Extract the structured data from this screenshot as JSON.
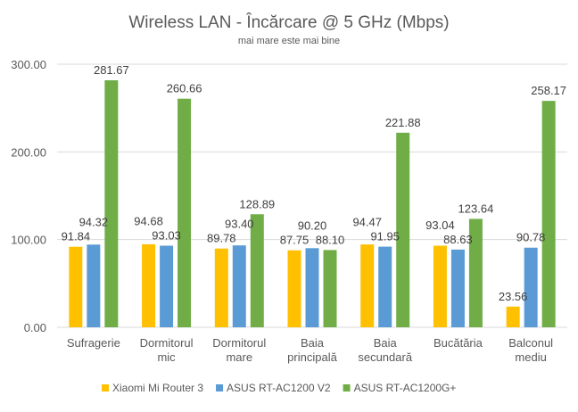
{
  "chart_data": {
    "type": "bar",
    "title": "Wireless LAN - Încărcare @ 5 GHz (Mbps)",
    "subtitle": "mai mare este mai bine",
    "categories": [
      [
        "Sufragerie"
      ],
      [
        "Dormitorul",
        "mic"
      ],
      [
        "Dormitorul",
        "mare"
      ],
      [
        "Baia",
        "principală"
      ],
      [
        "Baia",
        "secundară"
      ],
      [
        "Bucătăria"
      ],
      [
        "Balconul",
        "mediu"
      ]
    ],
    "series": [
      {
        "name": "Xiaomi Mi Router 3",
        "color": "#FFC000",
        "values": [
          91.84,
          94.68,
          89.78,
          87.75,
          94.47,
          93.04,
          23.56
        ]
      },
      {
        "name": "ASUS RT-AC1200 V2",
        "color": "#5B9BD5",
        "values": [
          94.32,
          93.03,
          93.4,
          90.2,
          91.95,
          88.63,
          90.78
        ]
      },
      {
        "name": "ASUS RT-AC1200G+",
        "color": "#70AD47",
        "values": [
          281.67,
          260.66,
          128.89,
          88.1,
          221.88,
          123.64,
          258.17
        ]
      }
    ],
    "yticks": [
      "0.00",
      "100.00",
      "200.00",
      "300.00"
    ],
    "ylim": [
      0,
      300
    ],
    "grid": true,
    "legend": "bottom"
  }
}
